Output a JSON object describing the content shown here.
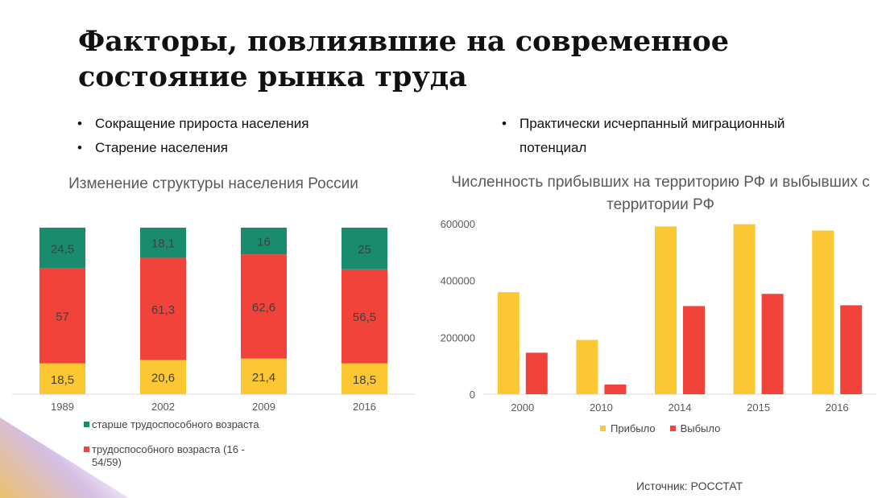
{
  "title": "Факторы, повлиявшие на современное состояние рынка труда",
  "bullets_left": [
    "Сокращение прироста населения",
    "Старение населения"
  ],
  "bullets_right": [
    "Практически исчерпанный миграционный потенциал"
  ],
  "source": "Источник: РОССТАТ",
  "colors": {
    "green": "#1a8c6e",
    "red": "#f2433a",
    "yellow": "#fbc733"
  },
  "chart_data": [
    {
      "type": "bar",
      "stacked": true,
      "title": "Изменение структуры населения России",
      "categories": [
        "1989",
        "2002",
        "2009",
        "2016"
      ],
      "series": [
        {
          "name": "",
          "color": "#fbc733",
          "values": [
            18.5,
            20.6,
            21.4,
            18.5
          ],
          "labels": [
            "18,5",
            "20,6",
            "21,4",
            "18,5"
          ]
        },
        {
          "name": "трудоспособного возраста (16 - 54/59)",
          "color": "#f2433a",
          "values": [
            57,
            61.3,
            62.6,
            56.5
          ],
          "labels": [
            "57",
            "61,3",
            "62,6",
            "56,5"
          ]
        },
        {
          "name": "старше трудоспособного возраста",
          "color": "#1a8c6e",
          "values": [
            24.5,
            18.1,
            16,
            25
          ],
          "labels": [
            "24,5",
            "18,1",
            "16",
            "25"
          ]
        }
      ],
      "legend": "bottom"
    },
    {
      "type": "bar",
      "title": "Численность прибывших на территорию РФ и выбывших с территории РФ",
      "categories": [
        "2000",
        "2010",
        "2014",
        "2015",
        "2016"
      ],
      "series": [
        {
          "name": "Прибыло",
          "color": "#fbc733",
          "values": [
            359000,
            191000,
            590000,
            598000,
            576000
          ]
        },
        {
          "name": "Выбыло",
          "color": "#f2433a",
          "values": [
            146000,
            34000,
            310000,
            353000,
            313000
          ]
        }
      ],
      "yticks": [
        "0",
        "200000",
        "400000",
        "600000"
      ],
      "ylim": [
        0,
        600000
      ],
      "legend": "bottom"
    }
  ]
}
